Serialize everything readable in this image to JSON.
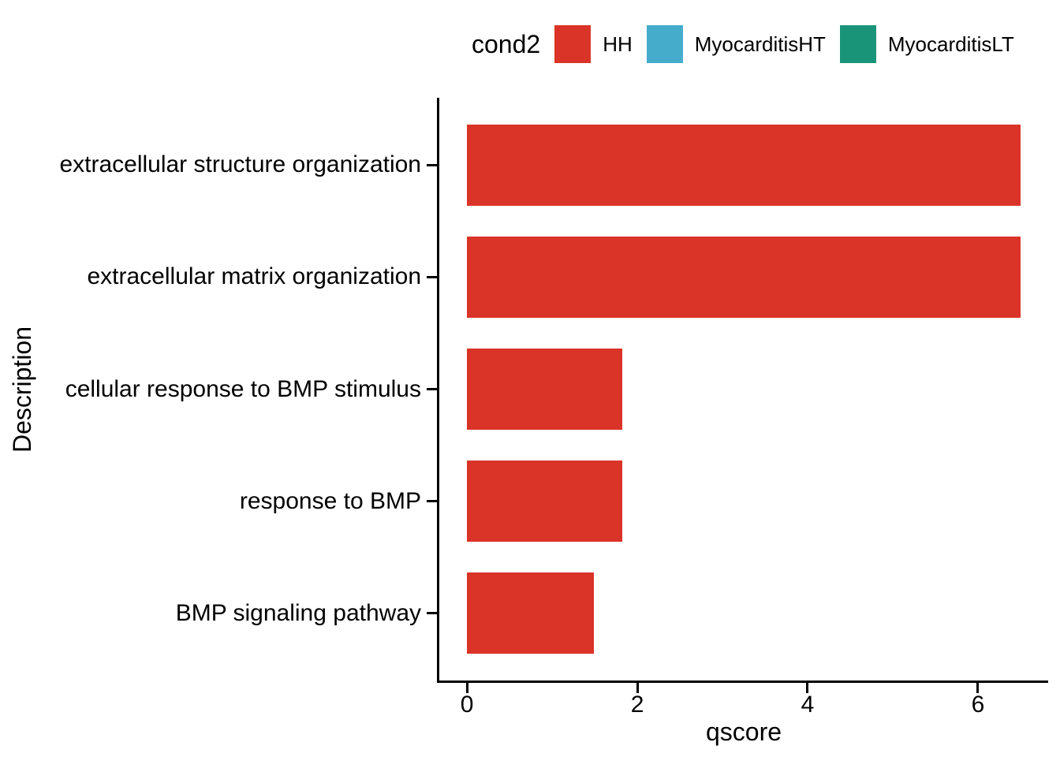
{
  "figure": {
    "background": "#FFFFFF",
    "text_color": "#000000",
    "axis_color": "#000000"
  },
  "legend": {
    "title": "cond2",
    "entries": [
      {
        "label": "HH",
        "color": "#DA3327"
      },
      {
        "label": "MyocarditisHT",
        "color": "#46ACCB"
      },
      {
        "label": "MyocarditisLT",
        "color": "#1A9478"
      }
    ]
  },
  "chart_data": {
    "type": "bar",
    "orientation": "horizontal",
    "title": "",
    "categories": [
      "extracellular structure organization",
      "extracellular matrix organization",
      "cellular response to BMP stimulus",
      "response to BMP",
      "BMP signaling pathway"
    ],
    "series": [
      {
        "name": "HH",
        "color": "#DA3327",
        "values": [
          6.5,
          6.5,
          1.82,
          1.82,
          1.49
        ]
      }
    ],
    "xlabel": "qscore",
    "ylabel": "Description",
    "xticks": [
      0,
      2,
      4,
      6
    ],
    "xlim": [
      0,
      6.5
    ],
    "legend_position": "top",
    "grid": false
  }
}
